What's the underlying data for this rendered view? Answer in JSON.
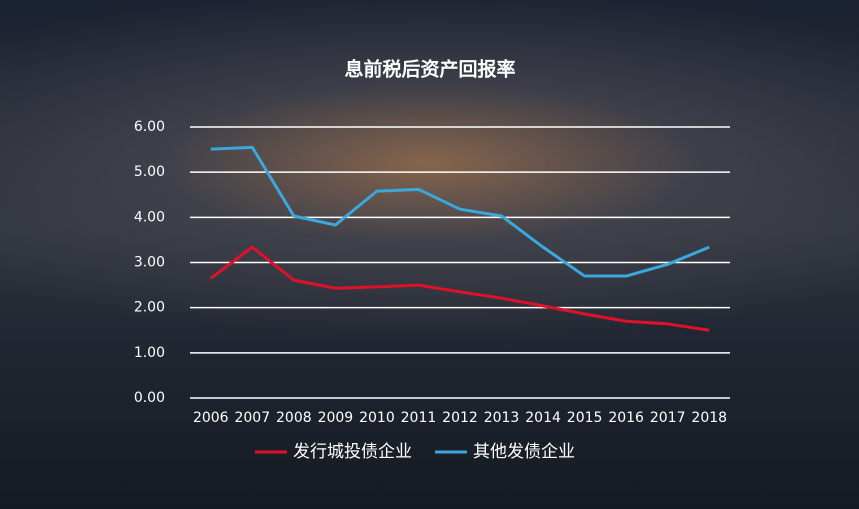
{
  "chart_data": {
    "type": "line",
    "title": "息前税后资产回报率",
    "categories": [
      "2006",
      "2007",
      "2008",
      "2009",
      "2010",
      "2011",
      "2012",
      "2013",
      "2014",
      "2015",
      "2016",
      "2017",
      "2018"
    ],
    "series": [
      {
        "name": "发行城投债企业",
        "color": "#e0102a",
        "values": [
          2.65,
          3.34,
          2.61,
          2.43,
          2.46,
          2.5,
          2.35,
          2.21,
          2.04,
          1.86,
          1.7,
          1.64,
          1.5
        ]
      },
      {
        "name": "其他发债企业",
        "color": "#3aa8dc",
        "values": [
          5.51,
          5.55,
          4.03,
          3.83,
          4.58,
          4.62,
          4.18,
          4.03,
          3.34,
          2.7,
          2.7,
          2.96,
          3.34
        ]
      }
    ],
    "ylim": [
      0,
      6
    ],
    "yticks": [
      {
        "value": 0,
        "label": "0.00"
      },
      {
        "value": 1,
        "label": "1.00"
      },
      {
        "value": 2,
        "label": "2.00"
      },
      {
        "value": 3,
        "label": "3.00"
      },
      {
        "value": 4,
        "label": "4.00"
      },
      {
        "value": 5,
        "label": "5.00"
      },
      {
        "value": 6,
        "label": "6.00"
      }
    ],
    "grid": true,
    "legend": "bottom"
  }
}
